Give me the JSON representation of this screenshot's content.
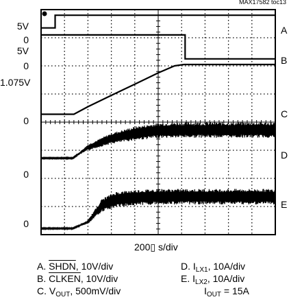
{
  "tag": "MAX17582 toc13",
  "time_scale": "200▯ s/div",
  "channel_markers": [
    {
      "text": "5V"
    },
    {
      "text": "0"
    },
    {
      "text": "5V"
    },
    {
      "text": "0"
    },
    {
      "text": "1.075V"
    },
    {
      "text": "0"
    },
    {
      "text": "0"
    },
    {
      "text": "0"
    }
  ],
  "trace_letters": [
    "A",
    "B",
    "C",
    "D",
    "E"
  ],
  "captions": {
    "a": {
      "prefix": "A. ",
      "name": "SHDN",
      "rest": ", 10V/div"
    },
    "b": {
      "prefix": "B. ",
      "name": "CLKEN",
      "rest": ", 10V/div"
    },
    "c": {
      "prefix": "C. V",
      "sub": "OUT",
      "rest": ", 500mV/div"
    },
    "d": {
      "prefix": "D. I",
      "sub": "LX1",
      "rest": ", 10A/div"
    },
    "e": {
      "prefix": "E. I",
      "sub": "LX2",
      "rest": ", 10A/div"
    },
    "f": {
      "prefix": "I",
      "sub": "OUT",
      "rest": " = 15A"
    }
  },
  "chart_data": {
    "type": "line",
    "x_unit": "divisions (200▯ s/div)",
    "xlim": [
      0,
      10
    ],
    "ylim": [
      0,
      8
    ],
    "grid": true,
    "series": [
      {
        "name": "A",
        "x": [
          0,
          0.6,
          0.6,
          10
        ],
        "y": [
          7.35,
          7.35,
          7.8,
          7.8
        ]
      },
      {
        "name": "B",
        "x": [
          0,
          6.15,
          6.15,
          10
        ],
        "y": [
          7.1,
          7.1,
          6.25,
          6.25
        ]
      },
      {
        "name": "C",
        "x": [
          0,
          1.4,
          2.0,
          3.0,
          4.0,
          5.0,
          5.7,
          6.1,
          10
        ],
        "y": [
          4.28,
          4.28,
          4.55,
          4.95,
          5.35,
          5.75,
          6.0,
          6.05,
          6.05
        ]
      },
      {
        "name": "D",
        "x": [
          0,
          1.35,
          2.0,
          3.0,
          4.0,
          5.0,
          6.0,
          10
        ],
        "y": [
          2.72,
          2.72,
          3.1,
          3.42,
          3.6,
          3.7,
          3.72,
          3.72
        ],
        "ripple": 0.55
      },
      {
        "name": "E",
        "x": [
          0,
          1.35,
          2.0,
          2.6,
          3.2,
          4.0,
          5.0,
          10
        ],
        "y": [
          0.22,
          0.22,
          0.45,
          1.05,
          1.25,
          1.32,
          1.35,
          1.35
        ],
        "ripple": 0.55
      }
    ]
  }
}
